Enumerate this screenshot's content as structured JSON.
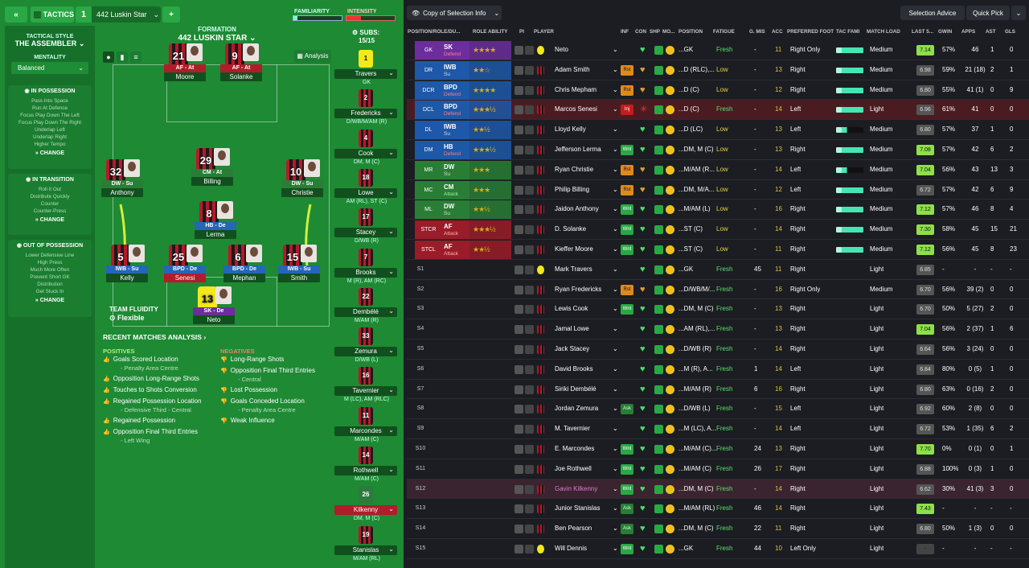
{
  "header": {
    "back_icon": "double-chevron-left-icon",
    "tactics_label": "TACTICS",
    "tactic_number": "1",
    "tactic_name": "442 Luskin Star",
    "add_icon": "plus-icon",
    "familiarity_label": "FAMILIARITY",
    "intensity_label": "INTENSITY"
  },
  "sidebar": {
    "style_label": "TACTICAL STYLE",
    "style_value": "THE ASSEMBLER",
    "mentality_label": "MENTALITY",
    "mentality_value": "Balanced",
    "in_possession": {
      "title": "IN POSSESSION",
      "items": [
        "Pass Into Space",
        "Run At Defence",
        "Focus Play Down The Left",
        "Focus Play Down The Right",
        "Underlap Left",
        "Underlap Right",
        "Higher Tempo"
      ],
      "change": "CHANGE"
    },
    "in_transition": {
      "title": "IN TRANSITION",
      "items": [
        "Roll It Out",
        "Distribute Quickly",
        "Counter",
        "Counter-Press"
      ],
      "change": "CHANGE"
    },
    "out_of_possession": {
      "title": "OUT OF POSSESSION",
      "items": [
        "Lower Defensive Line",
        "High Press",
        "Much More Often",
        "Prevent Short GK",
        "Distribution",
        "Get Stuck In"
      ],
      "change": "CHANGE"
    }
  },
  "formation": {
    "label": "FORMATION",
    "name": "442 LUSKIN STAR",
    "analysis": "Analysis",
    "subs_label": "SUBS:",
    "subs_count": "15/15",
    "fluidity_label": "TEAM FLUIDITY",
    "fluidity_value": "Flexible"
  },
  "pitch_players": [
    {
      "num": "21",
      "role": "AF - At",
      "name": "Moore",
      "cls": "r-af"
    },
    {
      "num": "9",
      "role": "AF - At",
      "name": "Solanke",
      "cls": "r-af"
    },
    {
      "num": "32",
      "role": "DW - Su",
      "name": "Anthony",
      "cls": "r-dw"
    },
    {
      "num": "29",
      "role": "CM - At",
      "name": "Billing",
      "cls": "r-cm"
    },
    {
      "num": "10",
      "role": "DW - Su",
      "name": "Christie",
      "cls": "r-dw"
    },
    {
      "num": "8",
      "role": "HB - De",
      "name": "Lerma",
      "cls": "r-hb"
    },
    {
      "num": "5",
      "role": "IWB - Su",
      "name": "Kelly",
      "cls": "r-iwb"
    },
    {
      "num": "25",
      "role": "BPD - De",
      "name": "Senesi",
      "cls": "r-bpd"
    },
    {
      "num": "6",
      "role": "BPD - De",
      "name": "Mephan",
      "cls": "r-bpd"
    },
    {
      "num": "15",
      "role": "IWB - Su",
      "name": "Smith",
      "cls": "r-iwb"
    },
    {
      "num": "13",
      "role": "SK - De",
      "name": "Neto",
      "cls": "r-sk"
    }
  ],
  "subs": [
    {
      "num": "1",
      "name": "Travers",
      "pos": "GK"
    },
    {
      "num": "2",
      "name": "Fredericks",
      "pos": "D/WB/M/AM (R)"
    },
    {
      "num": "4",
      "name": "Cook",
      "pos": "DM, M (C)"
    },
    {
      "num": "18",
      "name": "Lowe",
      "pos": "AM (RL), ST (C)"
    },
    {
      "num": "17",
      "name": "Stacey",
      "pos": "D/WB (R)"
    },
    {
      "num": "7",
      "name": "Brooks",
      "pos": "M (R), AM (RC)"
    },
    {
      "num": "22",
      "name": "Dembélé",
      "pos": "M/AM (R)"
    },
    {
      "num": "33",
      "name": "Zemura",
      "pos": "D/WB (L)"
    },
    {
      "num": "16",
      "name": "Tavernier",
      "pos": "M (LC), AM (RLC)"
    },
    {
      "num": "11",
      "name": "Marcondes",
      "pos": "M/AM (C)"
    },
    {
      "num": "14",
      "name": "Rothwell",
      "pos": "M/AM (C)"
    },
    {
      "num": "26",
      "name": "Kilkenny",
      "pos": "DM, M (C)"
    },
    {
      "num": "19",
      "name": "Stanislas",
      "pos": "M/AM (RL)"
    }
  ],
  "analysis": {
    "title": "RECENT MATCHES ANALYSIS",
    "positives_label": "POSITIVES",
    "negatives_label": "NEGATIVES",
    "positives": [
      [
        "Goals Scored Location",
        "- Penalty Area Centre"
      ],
      [
        "Opposition Long-Range Shots",
        ""
      ],
      [
        "Touches to Shots Conversion",
        ""
      ],
      [
        "Regained Possession Location",
        "- Defensive Third - Central"
      ],
      [
        "Regained Possession",
        ""
      ],
      [
        "Opposition Final Third Entries",
        "- Left Wing"
      ]
    ],
    "negatives": [
      [
        "Long-Range Shots",
        ""
      ],
      [
        "Opposition Final Third Entries",
        "- Central"
      ],
      [
        "Lost Possession",
        ""
      ],
      [
        "Goals Conceded Location",
        "- Penalty Area Centre"
      ],
      [
        "Weak Influence",
        ""
      ]
    ]
  },
  "right_header": {
    "eye_icon": "eye-icon",
    "copy_label": "Copy of Selection Info",
    "selection_advice": "Selection Advice",
    "quick_pick": "Quick Pick"
  },
  "columns": [
    "POSITION/ROLE/DU...",
    "ROLE ABILITY",
    "PI",
    "PLAYER",
    "INF",
    "CON",
    "SHP",
    "MO...",
    "POSITION",
    "FATIGUE",
    "G. MIS",
    "ACC",
    "PREFERRED FOOT",
    "TAC FAMI",
    "MATCH LOAD",
    "LAST 5...",
    "GWIN",
    "APPS",
    "AST",
    "GLS"
  ],
  "rows": [
    {
      "slot": "GK",
      "role": "SK",
      "duty": "Defend",
      "col": "#6b2e9c",
      "stars": "★★★★",
      "name": "Neto",
      "inf": "",
      "pos": "...GK",
      "fat": "Fresh",
      "gmis": "-",
      "acc": "11",
      "foot": "Right Only",
      "load": "Medium",
      "avr": "7.14",
      "gwin": "57%",
      "apps": "46",
      "ast": "1",
      "gls": "0"
    },
    {
      "slot": "DR",
      "role": "IWB",
      "duty": "Su",
      "col": "#1e58a8",
      "stars": "★★☆",
      "name": "Adam Smith",
      "inf": "Rst",
      "pos": "...D (RLC),...",
      "fat": "Low",
      "gmis": "-",
      "acc": "13",
      "foot": "Right",
      "load": "Medium",
      "avr": "6.98",
      "gwin": "59%",
      "apps": "21 (18)",
      "ast": "2",
      "gls": "1"
    },
    {
      "slot": "DCR",
      "role": "BPD",
      "duty": "Defend",
      "col": "#1e58a8",
      "stars": "★★★★",
      "name": "Chris Mepham",
      "inf": "Rst",
      "pos": "...D (C)",
      "fat": "Low",
      "gmis": "-",
      "acc": "12",
      "foot": "Right",
      "load": "Medium",
      "avr": "6.80",
      "gwin": "55%",
      "apps": "41 (1)",
      "ast": "0",
      "gls": "9"
    },
    {
      "slot": "DCL",
      "role": "BPD",
      "duty": "Defend",
      "col": "#1e58a8",
      "stars": "★★★½",
      "name": "Marcos Senesi",
      "inf": "Inj",
      "pos": "...D (C)",
      "fat": "Fresh",
      "gmis": "-",
      "acc": "14",
      "foot": "Left",
      "load": "Light",
      "avr": "6.96",
      "gwin": "61%",
      "apps": "41",
      "ast": "0",
      "gls": "0",
      "hl": true
    },
    {
      "slot": "DL",
      "role": "IWB",
      "duty": "Su",
      "col": "#1e58a8",
      "stars": "★★½",
      "name": "Lloyd Kelly",
      "inf": "",
      "pos": "...D (LC)",
      "fat": "Low",
      "gmis": "-",
      "acc": "13",
      "foot": "Left",
      "load": "Medium",
      "avr": "6.80",
      "gwin": "57%",
      "apps": "37",
      "ast": "1",
      "gls": "0"
    },
    {
      "slot": "DM",
      "role": "HB",
      "duty": "Defend",
      "col": "#1e58a8",
      "stars": "★★★½",
      "name": "Jefferson Lerma",
      "inf": "Wnt",
      "pos": "...DM, M (C)",
      "fat": "Low",
      "gmis": "-",
      "acc": "13",
      "foot": "Right",
      "load": "Medium",
      "avr": "7.08",
      "gwin": "57%",
      "apps": "42",
      "ast": "6",
      "gls": "2"
    },
    {
      "slot": "MR",
      "role": "DW",
      "duty": "Su",
      "col": "#2a7d35",
      "stars": "★★★",
      "name": "Ryan Christie",
      "inf": "Rst",
      "pos": "...M/AM (R...",
      "fat": "Low",
      "gmis": "-",
      "acc": "14",
      "foot": "Left",
      "load": "Medium",
      "avr": "7.04",
      "gwin": "56%",
      "apps": "43",
      "ast": "13",
      "gls": "3"
    },
    {
      "slot": "MC",
      "role": "CM",
      "duty": "Attack",
      "col": "#2a7d35",
      "stars": "★★★",
      "name": "Philip Billing",
      "inf": "Rst",
      "pos": "...DM, M/A...",
      "fat": "Low",
      "gmis": "-",
      "acc": "12",
      "foot": "Left",
      "load": "Medium",
      "avr": "6.72",
      "gwin": "57%",
      "apps": "42",
      "ast": "6",
      "gls": "9"
    },
    {
      "slot": "ML",
      "role": "DW",
      "duty": "Su",
      "col": "#2a7d35",
      "stars": "★★½",
      "name": "Jaidon Anthony",
      "inf": "Wnt",
      "pos": "...M/AM (L)",
      "fat": "Low",
      "gmis": "-",
      "acc": "16",
      "foot": "Right",
      "load": "Medium",
      "avr": "7.12",
      "gwin": "57%",
      "apps": "46",
      "ast": "8",
      "gls": "4"
    },
    {
      "slot": "STCR",
      "role": "AF",
      "duty": "Attack",
      "col": "#9a1c28",
      "stars": "★★★½",
      "name": "D. Solanke",
      "inf": "Wnt",
      "pos": "...ST (C)",
      "fat": "Low",
      "gmis": "-",
      "acc": "14",
      "foot": "Right",
      "load": "Medium",
      "avr": "7.30",
      "gwin": "58%",
      "apps": "45",
      "ast": "15",
      "gls": "21"
    },
    {
      "slot": "STCL",
      "role": "AF",
      "duty": "Attack",
      "col": "#9a1c28",
      "stars": "★★½",
      "name": "Kieffer Moore",
      "inf": "Wnt",
      "pos": "...ST (C)",
      "fat": "Low",
      "gmis": "-",
      "acc": "11",
      "foot": "Right",
      "load": "Medium",
      "avr": "7.12",
      "gwin": "56%",
      "apps": "45",
      "ast": "8",
      "gls": "23"
    },
    {
      "slot": "S1",
      "name": "Mark Travers",
      "inf": "",
      "pos": "...GK",
      "fat": "Fresh",
      "gmis": "45",
      "acc": "11",
      "foot": "Right",
      "load": "Light",
      "avr": "6.85",
      "gwin": "-",
      "apps": "-",
      "ast": "-",
      "gls": "-"
    },
    {
      "slot": "S2",
      "name": "Ryan Fredericks",
      "inf": "Rst",
      "pos": "...D/WB/M/...",
      "fat": "Fresh",
      "gmis": "-",
      "acc": "16",
      "foot": "Right Only",
      "load": "Medium",
      "avr": "6.70",
      "gwin": "56%",
      "apps": "39 (2)",
      "ast": "0",
      "gls": "0"
    },
    {
      "slot": "S3",
      "name": "Lewis Cook",
      "inf": "Wnt",
      "pos": "...DM, M (C)",
      "fat": "Fresh",
      "gmis": "-",
      "acc": "13",
      "foot": "Right",
      "load": "Light",
      "avr": "6.70",
      "gwin": "50%",
      "apps": "5 (27)",
      "ast": "2",
      "gls": "0"
    },
    {
      "slot": "S4",
      "name": "Jamal Lowe",
      "inf": "",
      "pos": "...AM (RL),...",
      "fat": "Fresh",
      "gmis": "-",
      "acc": "13",
      "foot": "Right",
      "load": "Light",
      "avr": "7.04",
      "gwin": "56%",
      "apps": "2 (37)",
      "ast": "1",
      "gls": "6"
    },
    {
      "slot": "S5",
      "name": "Jack Stacey",
      "inf": "",
      "pos": "...D/WB (R)",
      "fat": "Fresh",
      "gmis": "-",
      "acc": "14",
      "foot": "Right",
      "load": "Light",
      "avr": "6.64",
      "gwin": "56%",
      "apps": "3 (24)",
      "ast": "0",
      "gls": "0"
    },
    {
      "slot": "S6",
      "name": "David Brooks",
      "inf": "",
      "pos": "...M (R), A...",
      "fat": "Fresh",
      "gmis": "1",
      "acc": "14",
      "foot": "Left",
      "load": "Light",
      "avr": "6.84",
      "gwin": "80%",
      "apps": "0 (5)",
      "ast": "1",
      "gls": "0"
    },
    {
      "slot": "S7",
      "name": "Siriki Dembélé",
      "inf": "",
      "pos": "...M/AM (R)",
      "fat": "Fresh",
      "gmis": "6",
      "acc": "16",
      "foot": "Right",
      "load": "Light",
      "avr": "6.80",
      "gwin": "63%",
      "apps": "0 (16)",
      "ast": "2",
      "gls": "0"
    },
    {
      "slot": "S8",
      "name": "Jordan Zemura",
      "inf": "Ask",
      "pos": "...D/WB (L)",
      "fat": "Fresh",
      "gmis": "-",
      "acc": "15",
      "foot": "Left",
      "load": "Light",
      "avr": "6.92",
      "gwin": "60%",
      "apps": "2 (8)",
      "ast": "0",
      "gls": "0"
    },
    {
      "slot": "S9",
      "name": "M. Tavernier",
      "inf": "",
      "pos": "...M (LC), A...",
      "fat": "Fresh",
      "gmis": "-",
      "acc": "14",
      "foot": "Left",
      "load": "Light",
      "avr": "6.72",
      "gwin": "53%",
      "apps": "1 (35)",
      "ast": "6",
      "gls": "2"
    },
    {
      "slot": "S10",
      "name": "E. Marcondes",
      "inf": "Wnt",
      "pos": "...M/AM (C)...",
      "fat": "Fresh",
      "gmis": "24",
      "acc": "13",
      "foot": "Right",
      "load": "Light",
      "avr": "7.70",
      "gwin": "0%",
      "apps": "0 (1)",
      "ast": "0",
      "gls": "1"
    },
    {
      "slot": "S11",
      "name": "Joe Rothwell",
      "inf": "Wnt",
      "pos": "...M/AM (C)",
      "fat": "Fresh",
      "gmis": "26",
      "acc": "17",
      "foot": "Right",
      "load": "Light",
      "avr": "6.88",
      "gwin": "100%",
      "apps": "0 (3)",
      "ast": "1",
      "gls": "0"
    },
    {
      "slot": "S12",
      "name": "Gavin Kilkenny",
      "inf": "Wnt",
      "pos": "...DM, M (C)",
      "fat": "Fresh",
      "gmis": "-",
      "acc": "14",
      "foot": "Right",
      "load": "Light",
      "avr": "6.62",
      "gwin": "30%",
      "apps": "41 (3)",
      "ast": "3",
      "gls": "0",
      "hl": true,
      "purple": true
    },
    {
      "slot": "S13",
      "name": "Junior Stanislas",
      "inf": "Ask",
      "pos": "...M/AM (RL)",
      "fat": "Fresh",
      "gmis": "46",
      "acc": "14",
      "foot": "Right",
      "load": "Light",
      "avr": "7.43",
      "gwin": "-",
      "apps": "-",
      "ast": "-",
      "gls": "-"
    },
    {
      "slot": "S14",
      "name": "Ben Pearson",
      "inf": "Ask",
      "pos": "...DM, M (C)",
      "fat": "Fresh",
      "gmis": "22",
      "acc": "11",
      "foot": "Right",
      "load": "Light",
      "avr": "6.80",
      "gwin": "50%",
      "apps": "1 (3)",
      "ast": "0",
      "gls": "0"
    },
    {
      "slot": "S15",
      "name": "Will Dennis",
      "inf": "Wnt",
      "pos": "...GK",
      "fat": "Fresh",
      "gmis": "44",
      "acc": "10",
      "foot": "Left Only",
      "load": "Light",
      "avr": "-",
      "gwin": "-",
      "apps": "-",
      "ast": "-",
      "gls": "-"
    }
  ]
}
